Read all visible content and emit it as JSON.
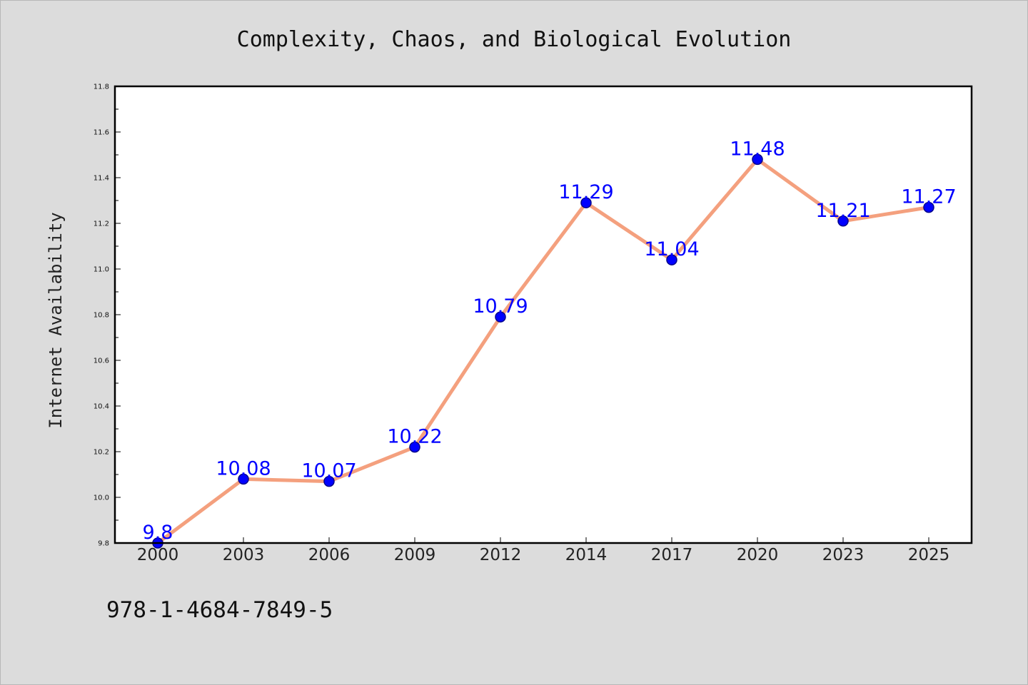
{
  "chart_data": {
    "type": "line",
    "title": "Complexity, Chaos, and Biological Evolution",
    "xlabel": "",
    "ylabel": "Internet Availability",
    "categories": [
      "2000",
      "2003",
      "2006",
      "2009",
      "2012",
      "2014",
      "2017",
      "2020",
      "2023",
      "2025"
    ],
    "series": [
      {
        "values": [
          9.8,
          10.08,
          10.07,
          10.22,
          10.79,
          11.29,
          11.04,
          11.48,
          11.21,
          11.27
        ]
      }
    ],
    "data_labels": [
      "9.8",
      "10.08",
      "10.07",
      "10.22",
      "10.79",
      "11.29",
      "11.04",
      "11.48",
      "11.21",
      "11.27"
    ],
    "ylim": [
      9.8,
      11.8
    ],
    "yticks": [
      9.8,
      10.0,
      10.2,
      10.4,
      10.6,
      10.8,
      11.0,
      11.2,
      11.4,
      11.6,
      11.8
    ],
    "ytick_labels": [
      "9.8",
      "10.0",
      "10.2",
      "10.4",
      "10.6",
      "10.8",
      "11.0",
      "11.2",
      "11.4",
      "11.6",
      "11.8"
    ],
    "grid": false,
    "legend": "none",
    "colors": {
      "line": "#f4a07e",
      "marker": "#0000ff",
      "marker_edge": "#00008b",
      "label": "#0000ff",
      "plot_bg": "#ffffff",
      "page_bg": "#dcdcdc"
    }
  },
  "annotation": "978-1-4684-7849-5"
}
